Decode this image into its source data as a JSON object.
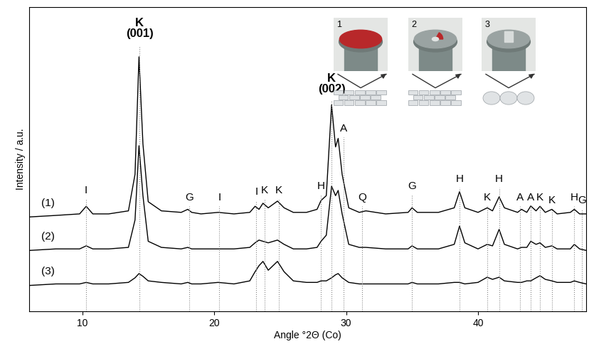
{
  "chart_data": {
    "type": "line",
    "x_label": "Angle °2Θ (Co)",
    "y_label": "Intensity / a.u.",
    "xlim": [
      6,
      48.2
    ],
    "xticks": [
      10,
      20,
      30,
      40
    ],
    "ylim": [
      0,
      100
    ],
    "yticks": [],
    "tick_labels": "x",
    "grid": false,
    "x": [
      6,
      8,
      9.8,
      10.3,
      10.8,
      12,
      13.5,
      14.0,
      14.3,
      14.6,
      15.0,
      16,
      17.5,
      18.0,
      18.3,
      19,
      20.3,
      21.5,
      22.7,
      23.1,
      23.4,
      23.7,
      24.1,
      24.8,
      25.3,
      26,
      27,
      27.8,
      28.1,
      28.5,
      28.9,
      29.2,
      29.4,
      29.7,
      30.2,
      31,
      31.5,
      33,
      34.7,
      35.0,
      35.4,
      37,
      38.2,
      38.6,
      39.0,
      40,
      40.7,
      41.1,
      41.6,
      42.0,
      43,
      43.3,
      43.7,
      44.0,
      44.4,
      44.7,
      45.1,
      45.6,
      46,
      47,
      47.3,
      47.7,
      48.2
    ],
    "series": [
      {
        "name": "(1)",
        "color": "#000000",
        "values": [
          31,
          31.5,
          32,
          34.5,
          32,
          32,
          33,
          45,
          83.6,
          55,
          36,
          33,
          32.5,
          33.5,
          32.5,
          32,
          32.5,
          32,
          32.5,
          34.5,
          33.5,
          35.5,
          34,
          36.2,
          34,
          32.5,
          32.5,
          33.5,
          36.4,
          38,
          67.8,
          54,
          56.8,
          45,
          34,
          32.5,
          33,
          32,
          32.5,
          34,
          32.5,
          32.5,
          34,
          39.3,
          34,
          32.5,
          34,
          33,
          37.6,
          34,
          32.5,
          33.5,
          32.5,
          34.6,
          33,
          34.5,
          32.5,
          33.5,
          32,
          32.5,
          33.5,
          32,
          32
        ]
      },
      {
        "name": "(2)",
        "color": "#000000",
        "values": [
          20,
          20.5,
          20.5,
          21.5,
          20.5,
          20.5,
          21,
          30,
          54.4,
          38,
          23,
          21,
          20.5,
          21,
          20.5,
          20.5,
          20.5,
          20.5,
          21,
          22.5,
          23.4,
          23,
          22.5,
          23.4,
          22,
          20.5,
          20.5,
          21,
          23,
          25,
          41.1,
          38,
          39.7,
          32,
          22,
          21,
          21,
          20.5,
          20.5,
          21.5,
          20.5,
          20.5,
          22,
          28,
          22.5,
          20.5,
          22,
          21.5,
          26.9,
          22,
          20.5,
          21,
          21,
          23,
          22,
          22.5,
          21,
          21.5,
          20.5,
          20.5,
          22,
          20.5,
          20
        ]
      },
      {
        "name": "(3)",
        "color": "#000000",
        "values": [
          8.5,
          9,
          9,
          9.5,
          9,
          9,
          9.5,
          11,
          12.4,
          11.5,
          10,
          9.5,
          9,
          9.5,
          9,
          9,
          9.5,
          9,
          10,
          13,
          15,
          16.4,
          13.5,
          16.4,
          13,
          10,
          9.5,
          9.5,
          10,
          10,
          11,
          12,
          12.4,
          11,
          9.5,
          9,
          9,
          9,
          9,
          9.5,
          9,
          9,
          9.5,
          9.5,
          9,
          9.5,
          11.2,
          10.5,
          11.2,
          10,
          9.5,
          9.5,
          10,
          10,
          11,
          11.7,
          10.5,
          10,
          9.5,
          9.5,
          10,
          9.5,
          9
        ]
      }
    ],
    "annotations": [
      {
        "text": "I",
        "x": 10.3,
        "y": 39.7
      },
      {
        "text": "K\n(001)",
        "x": 14.35,
        "y": 93
      },
      {
        "text": "G",
        "x": 18.1,
        "y": 37.4
      },
      {
        "text": "I",
        "x": 20.4,
        "y": 37.4
      },
      {
        "text": "I",
        "x": 23.2,
        "y": 39.3
      },
      {
        "text": "K",
        "x": 23.8,
        "y": 39.7
      },
      {
        "text": "K",
        "x": 24.9,
        "y": 39.7
      },
      {
        "text": "H",
        "x": 28.1,
        "y": 41.1
      },
      {
        "text": "K\n(002)",
        "x": 28.9,
        "y": 74.8
      },
      {
        "text": "A",
        "x": 29.8,
        "y": 60
      },
      {
        "text": "Q",
        "x": 31.2,
        "y": 37.4
      },
      {
        "text": "G",
        "x": 35.0,
        "y": 41.1
      },
      {
        "text": "H",
        "x": 38.6,
        "y": 43.5
      },
      {
        "text": "K",
        "x": 40.7,
        "y": 37.4
      },
      {
        "text": "H",
        "x": 41.6,
        "y": 43.5
      },
      {
        "text": "A",
        "x": 43.2,
        "y": 37.4
      },
      {
        "text": "A",
        "x": 44.0,
        "y": 37.4
      },
      {
        "text": "K",
        "x": 44.7,
        "y": 37.4
      },
      {
        "text": "K",
        "x": 45.6,
        "y": 36.4
      },
      {
        "text": "H",
        "x": 47.3,
        "y": 37.4
      },
      {
        "text": "G",
        "x": 47.9,
        "y": 36.4
      }
    ],
    "inset_labels": [
      "1",
      "2",
      "3"
    ]
  }
}
